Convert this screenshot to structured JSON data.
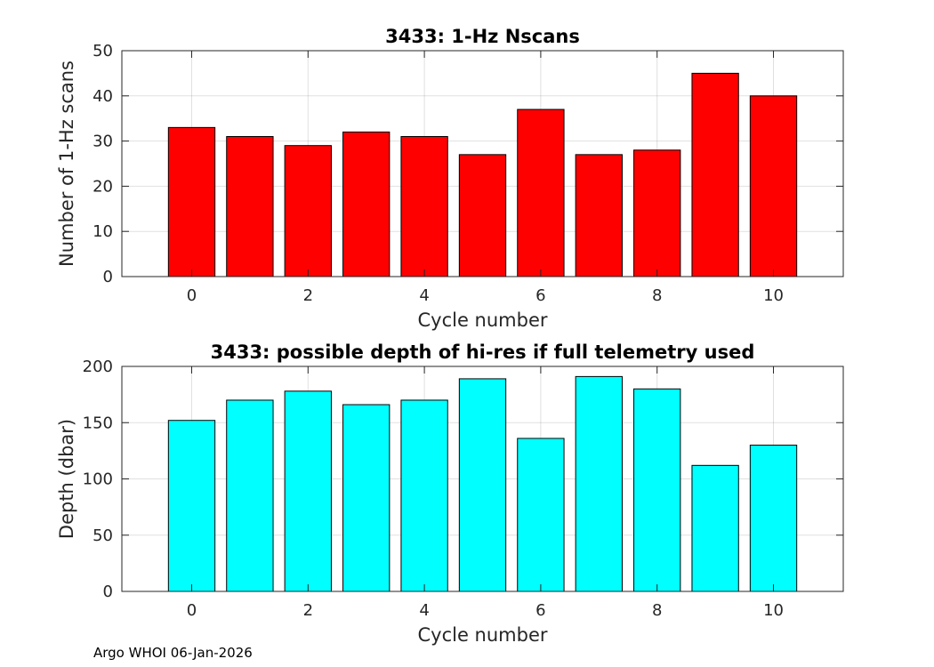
{
  "chart_data": [
    {
      "type": "bar",
      "title": "3433: 1-Hz Nscans",
      "xlabel": "Cycle number",
      "ylabel": "Number of 1-Hz scans",
      "x": [
        0,
        1,
        2,
        3,
        4,
        5,
        6,
        7,
        8,
        9,
        10
      ],
      "values": [
        33,
        31,
        29,
        32,
        31,
        27,
        37,
        27,
        28,
        45,
        40
      ],
      "xlim": [
        -1.2,
        11.2
      ],
      "ylim": [
        0,
        50
      ],
      "xticks": [
        0,
        2,
        4,
        6,
        8,
        10
      ],
      "yticks": [
        0,
        10,
        20,
        30,
        40,
        50
      ],
      "grid": true,
      "color": "#ff0000"
    },
    {
      "type": "bar",
      "title": "3433: possible depth of hi-res if full telemetry used",
      "xlabel": "Cycle number",
      "ylabel": "Depth (dbar)",
      "x": [
        0,
        1,
        2,
        3,
        4,
        5,
        6,
        7,
        8,
        9,
        10
      ],
      "values": [
        152,
        170,
        178,
        166,
        170,
        189,
        136,
        191,
        180,
        112,
        130
      ],
      "xlim": [
        -1.2,
        11.2
      ],
      "ylim": [
        0,
        200
      ],
      "xticks": [
        0,
        2,
        4,
        6,
        8,
        10
      ],
      "yticks": [
        0,
        50,
        100,
        150,
        200
      ],
      "grid": true,
      "color": "#00ffff"
    }
  ],
  "footer": "Argo WHOI 06-Jan-2026"
}
